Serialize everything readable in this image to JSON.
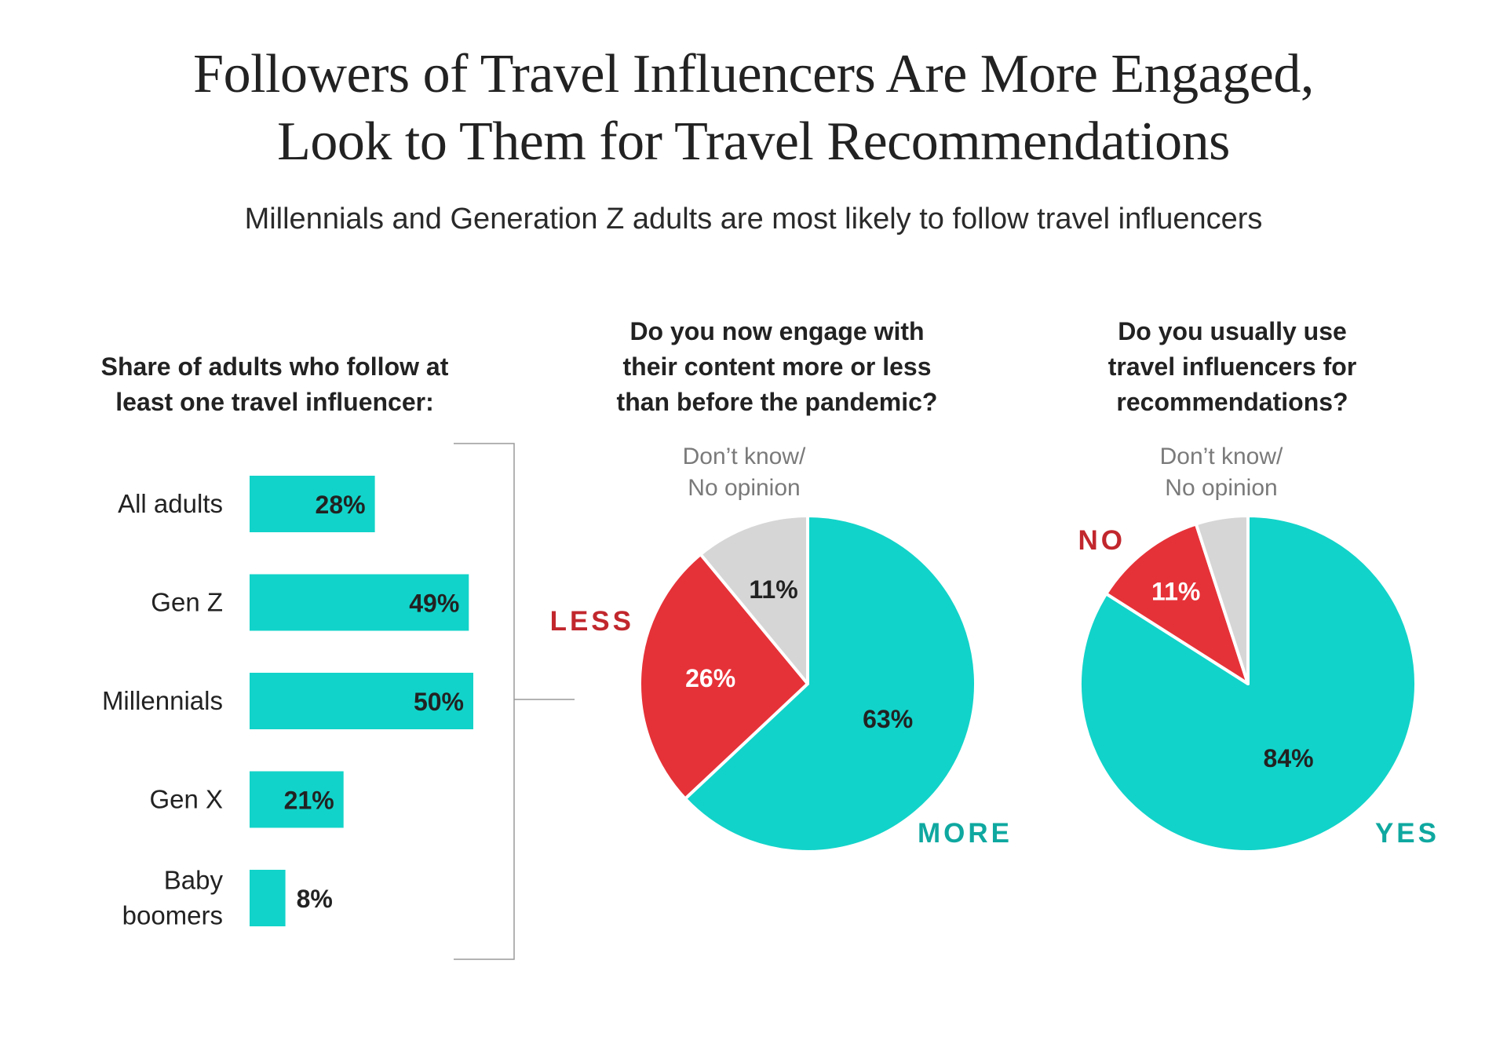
{
  "title": {
    "line1": "Followers of Travel Influencers Are More Engaged,",
    "line2": "Look to Them for Travel Recommendations"
  },
  "subtitle": "Millennials and Generation Z adults are most likely to follow travel influencers",
  "colors": {
    "teal": "#12d3c9",
    "red": "#e53238",
    "grey": "#d6d6d6",
    "dark_red": "#c1272d",
    "dark_teal": "#0fa8a0",
    "bracket": "#9a9a9a"
  },
  "chart_data": [
    {
      "type": "bar",
      "orientation": "horizontal",
      "title_lines": [
        "Share of adults who follow at",
        "least one travel influencer:"
      ],
      "categories": [
        [
          "All adults"
        ],
        [
          "Gen Z"
        ],
        [
          "Millennials"
        ],
        [
          "Gen X"
        ],
        [
          "Baby",
          "boomers"
        ]
      ],
      "values": [
        28,
        49,
        50,
        21,
        8
      ],
      "value_labels": [
        "28%",
        "49%",
        "50%",
        "21%",
        "8%"
      ],
      "xlim": [
        0,
        50
      ]
    },
    {
      "type": "pie",
      "title_lines": [
        "Do you now engage with",
        "their content more or less",
        "than before the pandemic?"
      ],
      "slices": [
        {
          "label": "MORE",
          "value": 63,
          "value_label": "63%",
          "color": "#12d3c9",
          "label_color": "#0fa8a0"
        },
        {
          "label": "LESS",
          "value": 26,
          "value_label": "26%",
          "color": "#e53238",
          "label_color": "#c1272d"
        },
        {
          "label_lines": [
            "Don’t know/",
            "No opinion"
          ],
          "value": 11,
          "value_label": "11%",
          "color": "#d6d6d6",
          "label_color": "#7a7a7a"
        }
      ]
    },
    {
      "type": "pie",
      "title_lines": [
        "Do you usually use",
        "travel influencers for",
        "recommendations?"
      ],
      "slices": [
        {
          "label": "YES",
          "value": 84,
          "value_label": "84%",
          "color": "#12d3c9",
          "label_color": "#0fa8a0"
        },
        {
          "label": "NO",
          "value": 11,
          "value_label": "11%",
          "color": "#e53238",
          "label_color": "#c1272d"
        },
        {
          "label_lines": [
            "Don’t know/",
            "No opinion"
          ],
          "value": 5,
          "value_label": "",
          "color": "#d6d6d6",
          "label_color": "#7a7a7a"
        }
      ]
    }
  ]
}
